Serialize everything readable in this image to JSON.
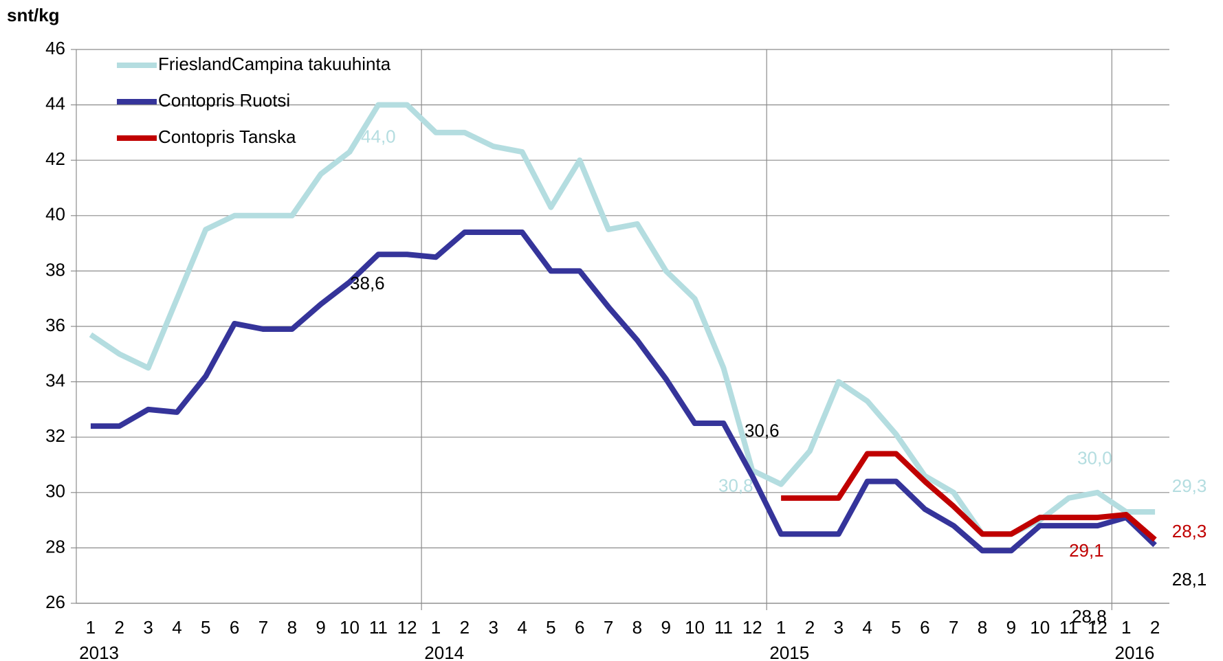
{
  "chart_data": {
    "type": "line",
    "y_label": "snt/kg",
    "categories": [
      "1",
      "2",
      "3",
      "4",
      "5",
      "6",
      "7",
      "8",
      "9",
      "10",
      "11",
      "12",
      "1",
      "2",
      "3",
      "4",
      "5",
      "6",
      "7",
      "8",
      "9",
      "10",
      "11",
      "12",
      "1",
      "2",
      "3",
      "4",
      "5",
      "6",
      "7",
      "8",
      "9",
      "10",
      "11",
      "12",
      "1",
      "2"
    ],
    "years": [
      "2013",
      "2014",
      "2015",
      "2016"
    ],
    "series": [
      {
        "name": "FrieslandCampina takuuhinta",
        "color": "#b4dde0",
        "values": [
          35.7,
          35.0,
          34.5,
          37.0,
          39.5,
          40.0,
          40.0,
          40.0,
          41.5,
          42.3,
          44.0,
          44.0,
          43.0,
          43.0,
          42.5,
          42.3,
          40.3,
          42.0,
          39.5,
          39.7,
          38.0,
          37.0,
          34.5,
          30.8,
          30.3,
          31.5,
          34.0,
          33.3,
          32.1,
          30.6,
          30.0,
          28.5,
          28.5,
          29.0,
          29.8,
          30.0,
          29.3,
          29.3
        ],
        "value_labels": [
          null,
          null,
          null,
          null,
          null,
          null,
          null,
          null,
          null,
          null,
          "44,0",
          null,
          null,
          null,
          null,
          null,
          null,
          null,
          null,
          null,
          null,
          null,
          null,
          "30,8",
          null,
          null,
          null,
          null,
          null,
          null,
          null,
          null,
          null,
          null,
          null,
          "30,0",
          null,
          "29,3"
        ]
      },
      {
        "name": "Contopris Ruotsi",
        "color": "#35349a",
        "values": [
          32.4,
          32.4,
          33.0,
          32.9,
          34.2,
          36.1,
          35.9,
          35.9,
          36.8,
          37.6,
          38.6,
          38.6,
          38.5,
          39.4,
          39.4,
          39.4,
          38.0,
          38.0,
          36.7,
          35.5,
          34.1,
          32.5,
          32.5,
          30.6,
          28.5,
          28.5,
          28.5,
          30.4,
          30.4,
          29.4,
          28.8,
          27.9,
          27.9,
          28.8,
          28.8,
          28.8,
          29.1,
          28.1
        ],
        "value_labels": [
          null,
          null,
          null,
          null,
          null,
          null,
          null,
          null,
          null,
          null,
          "38,6",
          null,
          null,
          null,
          null,
          null,
          null,
          null,
          null,
          null,
          null,
          null,
          null,
          "30,6",
          null,
          null,
          null,
          null,
          null,
          null,
          null,
          null,
          null,
          null,
          null,
          "28,8",
          null,
          "28,1"
        ]
      },
      {
        "name": "Contopris Tanska",
        "color": "#c00000",
        "values": [
          null,
          null,
          null,
          null,
          null,
          null,
          null,
          null,
          null,
          null,
          null,
          null,
          null,
          null,
          null,
          null,
          null,
          null,
          null,
          null,
          null,
          null,
          null,
          null,
          29.8,
          29.8,
          29.8,
          31.4,
          31.4,
          30.4,
          29.5,
          28.5,
          28.5,
          29.1,
          29.1,
          29.1,
          29.2,
          28.3
        ],
        "value_labels": [
          null,
          null,
          null,
          null,
          null,
          null,
          null,
          null,
          null,
          null,
          null,
          null,
          null,
          null,
          null,
          null,
          null,
          null,
          null,
          null,
          null,
          null,
          null,
          null,
          null,
          null,
          null,
          null,
          null,
          null,
          null,
          null,
          null,
          null,
          null,
          "29,1",
          null,
          "28,3"
        ]
      }
    ],
    "ylim": [
      26,
      46
    ],
    "yticks": [
      26,
      28,
      30,
      32,
      34,
      36,
      38,
      40,
      42,
      44,
      46
    ],
    "grid": true
  }
}
